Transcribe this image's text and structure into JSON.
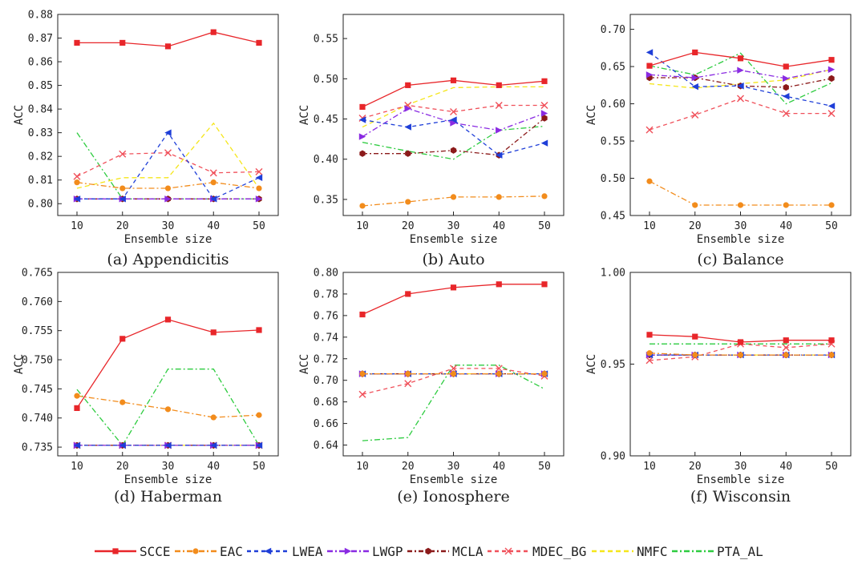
{
  "series_styles": [
    {
      "name": "SCCE",
      "color": "#e8262a",
      "dash": "",
      "marker": "square"
    },
    {
      "name": "EAC",
      "color": "#f28c1c",
      "dash": "7,3,2,3",
      "marker": "circle"
    },
    {
      "name": "LWEA",
      "color": "#1f3fd8",
      "dash": "5,4",
      "marker": "tri-left"
    },
    {
      "name": "LWGP",
      "color": "#8a2be2",
      "dash": "7,3,2,3",
      "marker": "tri-right"
    },
    {
      "name": "MCLA",
      "color": "#8b1a1a",
      "dash": "6,3,2,3",
      "marker": "hexagon"
    },
    {
      "name": "MDEC_BG",
      "color": "#f0505a",
      "dash": "5,4",
      "marker": "x"
    },
    {
      "name": "NMFC",
      "color": "#f5e61a",
      "dash": "6,4",
      "marker": "none"
    },
    {
      "name": "PTA_AL",
      "color": "#2ecc40",
      "dash": "7,3,2,3",
      "marker": "none"
    }
  ],
  "legend": {
    "entries": [
      "SCCE",
      "EAC",
      "LWEA",
      "LWGP",
      "MCLA",
      "MDEC_BG",
      "NMFC",
      "PTA_AL"
    ]
  },
  "chart_data": [
    {
      "type": "line",
      "caption": "(a) Appendicitis",
      "xlabel": "Ensemble size",
      "ylabel": "ACC",
      "x": [
        10,
        20,
        30,
        40,
        50
      ],
      "ylim": [
        0.795,
        0.88
      ],
      "yticks": [
        "0.80",
        "0.81",
        "0.82",
        "0.83",
        "0.84",
        "0.85",
        "0.86",
        "0.87",
        "0.88"
      ],
      "ytick_values": [
        0.8,
        0.81,
        0.82,
        0.83,
        0.84,
        0.85,
        0.86,
        0.87,
        0.88
      ],
      "series": [
        {
          "name": "SCCE",
          "values": [
            0.868,
            0.868,
            0.8665,
            0.8725,
            0.868
          ]
        },
        {
          "name": "EAC",
          "values": [
            0.809,
            0.8065,
            0.8065,
            0.809,
            0.8065
          ]
        },
        {
          "name": "LWEA",
          "values": [
            0.802,
            0.802,
            0.83,
            0.802,
            0.811
          ]
        },
        {
          "name": "LWGP",
          "values": [
            0.802,
            0.802,
            0.802,
            0.802,
            0.802
          ]
        },
        {
          "name": "MCLA",
          "values": [
            0.802,
            0.802,
            0.802,
            0.802,
            0.802
          ]
        },
        {
          "name": "MDEC_BG",
          "values": [
            0.8115,
            0.821,
            0.8215,
            0.813,
            0.8135
          ]
        },
        {
          "name": "NMFC",
          "values": [
            0.8065,
            0.811,
            0.811,
            0.834,
            0.8065
          ]
        },
        {
          "name": "PTA_AL",
          "values": [
            0.83,
            0.802,
            0.802,
            0.802,
            0.802
          ]
        }
      ]
    },
    {
      "type": "line",
      "caption": "(b) Auto",
      "xlabel": "Ensemble size",
      "ylabel": "ACC",
      "x": [
        10,
        20,
        30,
        40,
        50
      ],
      "ylim": [
        0.33,
        0.58
      ],
      "yticks": [
        "0.35",
        "0.40",
        "0.45",
        "0.50",
        "0.55"
      ],
      "ytick_values": [
        0.35,
        0.4,
        0.45,
        0.5,
        0.55
      ],
      "series": [
        {
          "name": "SCCE",
          "values": [
            0.465,
            0.492,
            0.498,
            0.492,
            0.497
          ]
        },
        {
          "name": "EAC",
          "values": [
            0.342,
            0.347,
            0.353,
            0.353,
            0.354
          ]
        },
        {
          "name": "LWEA",
          "values": [
            0.449,
            0.44,
            0.449,
            0.405,
            0.42
          ]
        },
        {
          "name": "LWGP",
          "values": [
            0.428,
            0.463,
            0.445,
            0.436,
            0.457
          ]
        },
        {
          "name": "MCLA",
          "values": [
            0.407,
            0.407,
            0.411,
            0.405,
            0.451
          ]
        },
        {
          "name": "MDEC_BG",
          "values": [
            0.451,
            0.467,
            0.459,
            0.467,
            0.467
          ]
        },
        {
          "name": "NMFC",
          "values": [
            0.44,
            0.468,
            0.489,
            0.49,
            0.49
          ]
        },
        {
          "name": "PTA_AL",
          "values": [
            0.421,
            0.41,
            0.4,
            0.436,
            0.441
          ]
        }
      ]
    },
    {
      "type": "line",
      "caption": "(c) Balance",
      "xlabel": "Ensemble size",
      "ylabel": "ACC",
      "x": [
        10,
        20,
        30,
        40,
        50
      ],
      "ylim": [
        0.45,
        0.72
      ],
      "yticks": [
        "0.45",
        "0.50",
        "0.55",
        "0.60",
        "0.65",
        "0.70"
      ],
      "ytick_values": [
        0.45,
        0.5,
        0.55,
        0.6,
        0.65,
        0.7
      ],
      "series": [
        {
          "name": "SCCE",
          "values": [
            0.651,
            0.669,
            0.661,
            0.65,
            0.659
          ]
        },
        {
          "name": "EAC",
          "values": [
            0.496,
            0.464,
            0.464,
            0.464,
            0.464
          ]
        },
        {
          "name": "LWEA",
          "values": [
            0.669,
            0.623,
            0.624,
            0.61,
            0.597
          ]
        },
        {
          "name": "LWGP",
          "values": [
            0.639,
            0.635,
            0.645,
            0.634,
            0.646
          ]
        },
        {
          "name": "MCLA",
          "values": [
            0.635,
            0.635,
            0.624,
            0.622,
            0.634
          ]
        },
        {
          "name": "MDEC_BG",
          "values": [
            0.565,
            0.585,
            0.607,
            0.587,
            0.587
          ]
        },
        {
          "name": "NMFC",
          "values": [
            0.627,
            0.621,
            0.627,
            0.632,
            0.646
          ]
        },
        {
          "name": "PTA_AL",
          "values": [
            0.651,
            0.639,
            0.668,
            0.6,
            0.628
          ]
        }
      ]
    },
    {
      "type": "line",
      "caption": "(d) Haberman",
      "xlabel": "Ensemble size",
      "ylabel": "ACC",
      "x": [
        10,
        20,
        30,
        40,
        50
      ],
      "ylim": [
        0.7335,
        0.765
      ],
      "yticks": [
        "0.735",
        "0.740",
        "0.745",
        "0.750",
        "0.755",
        "0.760",
        "0.765"
      ],
      "ytick_values": [
        0.735,
        0.74,
        0.745,
        0.75,
        0.755,
        0.76,
        0.765
      ],
      "series": [
        {
          "name": "SCCE",
          "values": [
            0.7417,
            0.7536,
            0.7569,
            0.7547,
            0.7551
          ]
        },
        {
          "name": "EAC",
          "values": [
            0.7438,
            0.7427,
            0.7415,
            0.7401,
            0.7405
          ]
        },
        {
          "name": "LWEA",
          "values": [
            0.7353,
            0.7353,
            0.7353,
            0.7353,
            0.7353
          ]
        },
        {
          "name": "LWGP",
          "values": [
            0.7353,
            0.7353,
            0.7353,
            0.7353,
            0.7353
          ]
        },
        {
          "name": "MCLA",
          "values": [
            0.7353,
            0.7353,
            0.7353,
            0.7353,
            0.7353
          ]
        },
        {
          "name": "MDEC_BG",
          "values": [
            0.7353,
            0.7353,
            0.7353,
            0.7353,
            0.7353
          ]
        },
        {
          "name": "NMFC",
          "values": [
            0.7353,
            0.7353,
            0.7353,
            0.7353,
            0.7353
          ]
        },
        {
          "name": "PTA_AL",
          "values": [
            0.7449,
            0.7353,
            0.7484,
            0.7484,
            0.7353
          ]
        }
      ]
    },
    {
      "type": "line",
      "caption": "(e) Ionosphere",
      "xlabel": "Ensemble size",
      "ylabel": "ACC",
      "x": [
        10,
        20,
        30,
        40,
        50
      ],
      "ylim": [
        0.63,
        0.8
      ],
      "yticks": [
        "0.64",
        "0.66",
        "0.68",
        "0.70",
        "0.72",
        "0.74",
        "0.76",
        "0.78",
        "0.80"
      ],
      "ytick_values": [
        0.64,
        0.66,
        0.68,
        0.7,
        0.72,
        0.74,
        0.76,
        0.78,
        0.8
      ],
      "series": [
        {
          "name": "SCCE",
          "values": [
            0.761,
            0.78,
            0.786,
            0.789,
            0.789
          ]
        },
        {
          "name": "EAC",
          "values": [
            0.706,
            0.706,
            0.706,
            0.706,
            0.706
          ]
        },
        {
          "name": "LWEA",
          "values": [
            0.706,
            0.706,
            0.706,
            0.706,
            0.706
          ]
        },
        {
          "name": "LWGP",
          "values": [
            0.706,
            0.706,
            0.706,
            0.706,
            0.706
          ]
        },
        {
          "name": "MCLA",
          "values": [
            0.706,
            0.706,
            0.706,
            0.706,
            0.706
          ]
        },
        {
          "name": "MDEC_BG",
          "values": [
            0.687,
            0.697,
            0.711,
            0.711,
            0.704
          ]
        },
        {
          "name": "NMFC",
          "values": [
            0.706,
            0.706,
            0.706,
            0.706,
            0.706
          ]
        },
        {
          "name": "PTA_AL",
          "values": [
            0.644,
            0.647,
            0.714,
            0.714,
            0.692
          ]
        }
      ]
    },
    {
      "type": "line",
      "caption": "(f) Wisconsin",
      "xlabel": "Ensemble size",
      "ylabel": "ACC",
      "x": [
        10,
        20,
        30,
        40,
        50
      ],
      "ylim": [
        0.9,
        1.0
      ],
      "yticks": [
        "0.90",
        "0.95",
        "1.00"
      ],
      "ytick_values": [
        0.9,
        0.95,
        1.0
      ],
      "series": [
        {
          "name": "SCCE",
          "values": [
            0.966,
            0.965,
            0.962,
            0.963,
            0.963
          ]
        },
        {
          "name": "EAC",
          "values": [
            0.956,
            0.955,
            0.955,
            0.955,
            0.955
          ]
        },
        {
          "name": "LWEA",
          "values": [
            0.955,
            0.955,
            0.955,
            0.955,
            0.955
          ]
        },
        {
          "name": "LWGP",
          "values": [
            0.955,
            0.955,
            0.955,
            0.955,
            0.955
          ]
        },
        {
          "name": "MCLA",
          "values": [
            0.955,
            0.955,
            0.955,
            0.955,
            0.955
          ]
        },
        {
          "name": "MDEC_BG",
          "values": [
            0.952,
            0.954,
            0.961,
            0.959,
            0.961
          ]
        },
        {
          "name": "NMFC",
          "values": [
            0.955,
            0.955,
            0.955,
            0.955,
            0.955
          ]
        },
        {
          "name": "PTA_AL",
          "values": [
            0.961,
            0.961,
            0.961,
            0.961,
            0.961
          ]
        }
      ]
    }
  ]
}
